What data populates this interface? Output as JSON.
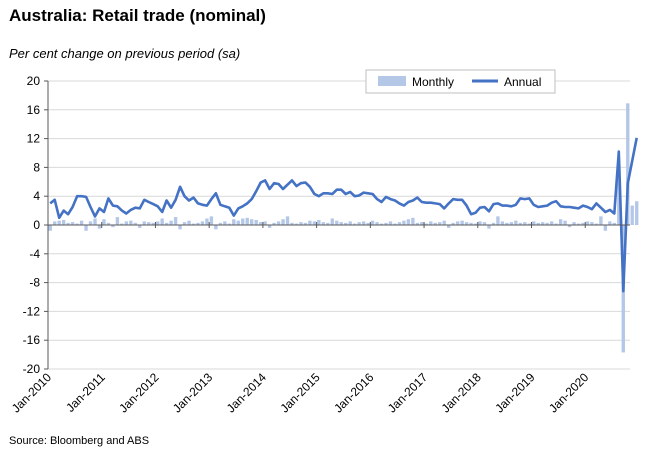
{
  "chart_data": {
    "type": "bar+line",
    "title": "Australia: Retail trade (nominal)",
    "subtitle": "Per cent change on previous period (sa)",
    "source": "Source: Bloomberg and ABS",
    "ylim": [
      -20,
      20
    ],
    "yticks": [
      20,
      16,
      12,
      8,
      4,
      0,
      -4,
      -8,
      -12,
      -16,
      -20
    ],
    "xlim": [
      "2010-01",
      "2020-11"
    ],
    "xticks": [
      "Jan-2010",
      "Jan-2011",
      "Jan-2012",
      "Jan-2013",
      "Jan-2014",
      "Jan-2015",
      "Jan-2016",
      "Jan-2017",
      "Jan-2018",
      "Jan-2019",
      "Jan-2020"
    ],
    "grid": true,
    "legend": {
      "placement": "top-right"
    },
    "colors": {
      "monthly": "#b4c7e7",
      "annual": "#4472c4",
      "grid": "#d9d9d9"
    },
    "series": [
      {
        "name": "Monthly",
        "type": "bar",
        "start": "2010-01",
        "values": [
          -0.8,
          0.5,
          0.6,
          0.7,
          0.3,
          0.4,
          0.2,
          0.6,
          -0.8,
          0.5,
          0.9,
          -0.5,
          0.8,
          0.3,
          -0.3,
          1.1,
          0.2,
          0.5,
          0.6,
          0.3,
          -0.4,
          0.5,
          0.4,
          0.3,
          0.5,
          0.9,
          0.3,
          0.6,
          1.1,
          -0.6,
          0.4,
          0.6,
          0.2,
          0.3,
          0.5,
          0.9,
          1.2,
          -0.6,
          0.3,
          0.5,
          0.2,
          0.8,
          0.6,
          0.9,
          1.0,
          0.8,
          0.7,
          0.4,
          0.5,
          -0.4,
          0.3,
          0.5,
          0.8,
          1.2,
          0.3,
          0.2,
          0.4,
          0.3,
          0.6,
          0.5,
          0.7,
          0.4,
          0.3,
          0.9,
          0.6,
          0.4,
          0.3,
          0.5,
          0.2,
          0.4,
          0.5,
          0.3,
          0.6,
          0.4,
          0.2,
          0.3,
          0.5,
          0.2,
          0.4,
          0.6,
          0.8,
          1.0,
          0.3,
          0.4,
          0.2,
          0.5,
          0.3,
          0.4,
          0.6,
          -0.4,
          0.3,
          0.5,
          0.6,
          0.4,
          0.3,
          0.2,
          0.5,
          0.4,
          -0.5,
          0.3,
          1.2,
          0.5,
          0.3,
          0.4,
          0.6,
          0.3,
          0.4,
          0.2,
          0.5,
          0.3,
          0.4,
          0.3,
          0.5,
          0.2,
          0.8,
          0.6,
          -0.3,
          0.4,
          0.2,
          0.3,
          0.5,
          0.4,
          0.2,
          1.2,
          -0.8,
          0.5,
          0.3,
          8.5,
          -17.7,
          16.9,
          2.7,
          3.3
        ]
      },
      {
        "name": "Annual",
        "type": "line",
        "start": "2010-01",
        "values": [
          3.0,
          3.5,
          1.0,
          2.0,
          1.5,
          2.5,
          4.0,
          4.0,
          3.9,
          2.5,
          1.2,
          2.3,
          1.8,
          3.7,
          2.7,
          2.6,
          2.0,
          1.6,
          2.1,
          2.4,
          2.3,
          3.5,
          3.2,
          2.9,
          2.6,
          1.8,
          3.4,
          2.4,
          3.5,
          5.3,
          4.0,
          3.4,
          3.8,
          3.0,
          2.8,
          2.7,
          3.6,
          4.4,
          2.8,
          2.6,
          2.4,
          1.3,
          2.3,
          2.6,
          3.0,
          3.6,
          4.7,
          5.9,
          6.2,
          5.0,
          5.8,
          5.7,
          5.0,
          5.6,
          6.2,
          5.4,
          5.8,
          5.9,
          5.3,
          4.3,
          4.0,
          4.4,
          4.4,
          4.3,
          4.9,
          4.9,
          4.3,
          4.6,
          4.0,
          4.1,
          4.5,
          4.4,
          4.3,
          3.6,
          3.2,
          3.9,
          3.6,
          3.4,
          3.0,
          2.7,
          3.2,
          3.4,
          3.8,
          3.2,
          3.1,
          3.1,
          3.0,
          2.9,
          2.3,
          3.0,
          3.6,
          3.5,
          3.5,
          2.7,
          1.5,
          1.7,
          2.4,
          2.5,
          1.9,
          2.9,
          3.0,
          2.7,
          2.7,
          2.6,
          2.8,
          3.7,
          3.6,
          3.7,
          2.8,
          2.5,
          2.6,
          2.7,
          3.1,
          3.3,
          2.6,
          2.5,
          2.5,
          2.4,
          2.3,
          2.7,
          2.5,
          2.2,
          3.0,
          2.4,
          1.8,
          2.1,
          1.6,
          10.2,
          -9.2,
          5.8,
          8.9,
          12.1
        ]
      }
    ]
  }
}
